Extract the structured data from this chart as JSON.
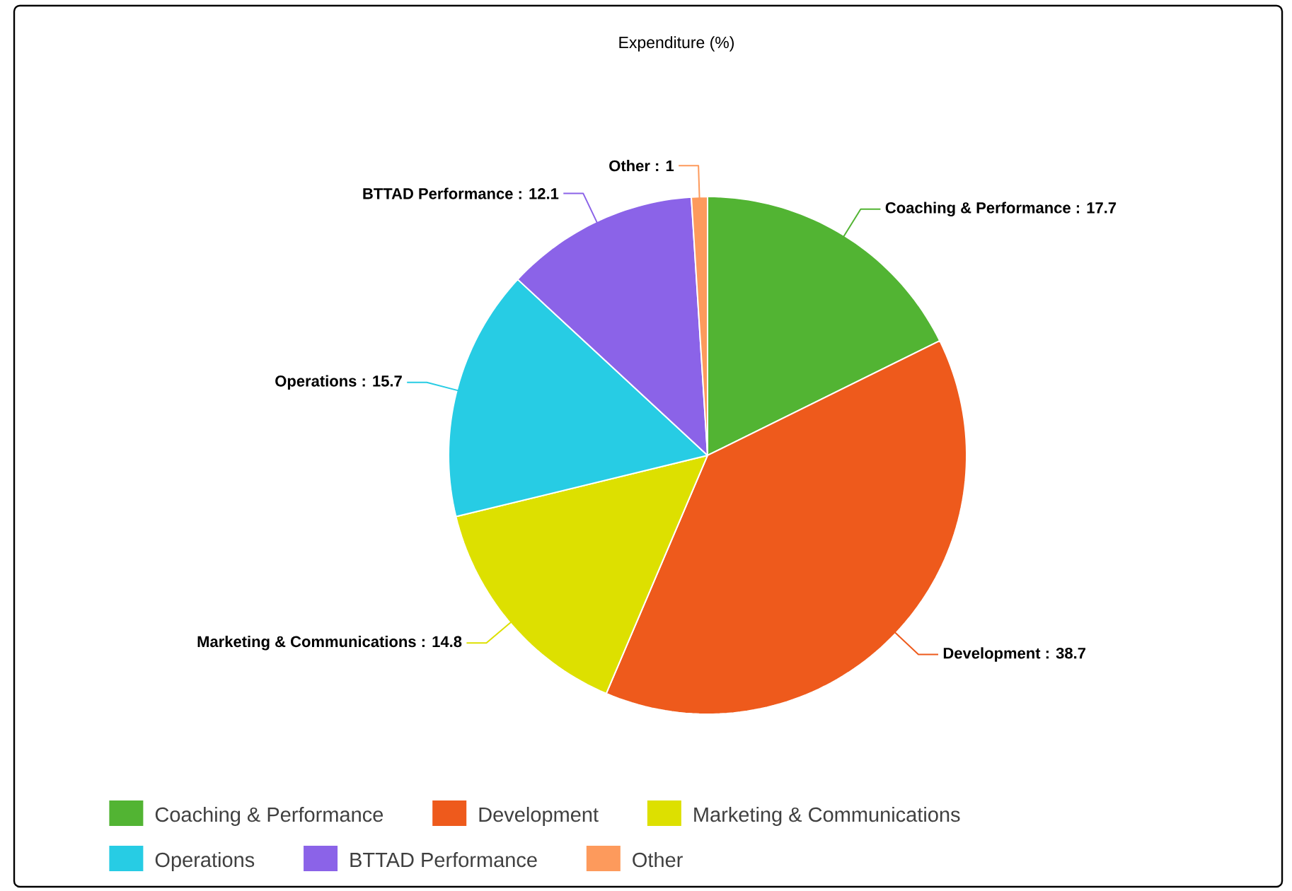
{
  "chart_data": {
    "type": "pie",
    "title": "Expenditure (%)",
    "categories": [
      "Coaching & Performance",
      "Development",
      "Marketing & Communications",
      "Operations",
      "BTTAD Performance",
      "Other"
    ],
    "values": [
      17.7,
      38.7,
      14.8,
      15.7,
      12.1,
      1
    ],
    "colors": [
      "#52b433",
      "#ee5a1c",
      "#dde000",
      "#27cce4",
      "#8b63e8",
      "#fd9a5c"
    ],
    "value_labels": [
      ": 17.7",
      ": 38.7",
      ": 14.8",
      ": 15.7",
      ": 12.1",
      ": 1"
    ],
    "legend": "bottom"
  }
}
